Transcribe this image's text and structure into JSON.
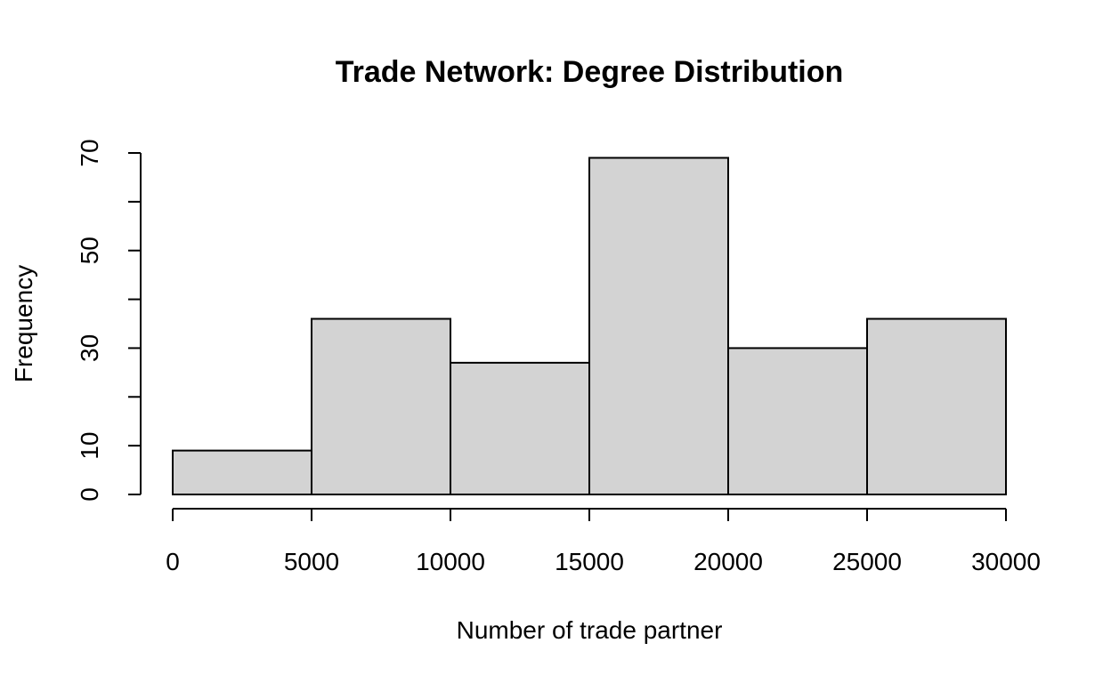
{
  "chart_data": {
    "type": "bar",
    "title": "Trade Network: Degree Distribution",
    "xlabel": "Number of trade partner",
    "ylabel": "Frequency",
    "bins": [
      {
        "x0": 0,
        "x1": 5000,
        "count": 9
      },
      {
        "x0": 5000,
        "x1": 10000,
        "count": 36
      },
      {
        "x0": 10000,
        "x1": 15000,
        "count": 27
      },
      {
        "x0": 15000,
        "x1": 20000,
        "count": 69
      },
      {
        "x0": 20000,
        "x1": 25000,
        "count": 30
      },
      {
        "x0": 25000,
        "x1": 30000,
        "count": 36
      }
    ],
    "xlim": [
      0,
      30000
    ],
    "ylim": [
      0,
      70
    ],
    "x_ticks": [
      0,
      5000,
      10000,
      15000,
      20000,
      25000,
      30000
    ],
    "y_ticks": [
      0,
      10,
      20,
      30,
      40,
      50,
      60,
      70
    ],
    "y_tick_labels": [
      "0",
      "10",
      "",
      "30",
      "",
      "50",
      "",
      "70"
    ],
    "grid": false,
    "bar_color": "#d3d3d3"
  }
}
